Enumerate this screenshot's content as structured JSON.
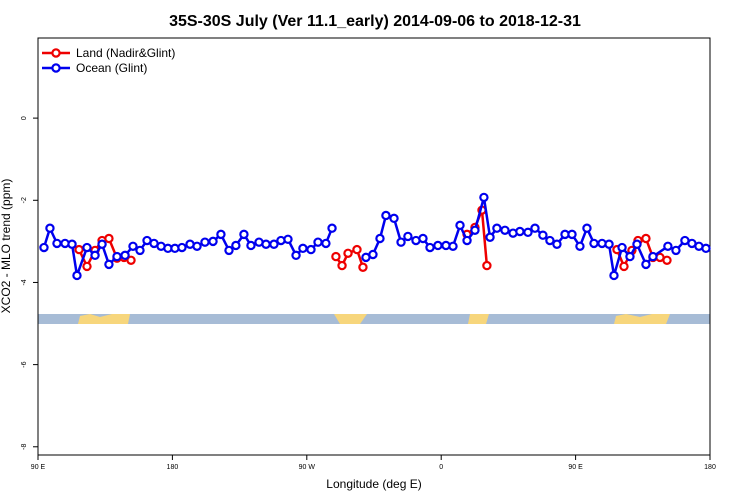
{
  "chart_data": {
    "type": "line",
    "title": "35S-30S July (Ver 11.1_early)   2014-09-06 to 2018-12-31",
    "x_label": "Longitude (deg E)",
    "y_label": "XCO2 - MLO trend (ppm)",
    "xlim": [
      90,
      540
    ],
    "ylim": [
      -8.2,
      1.95
    ],
    "xticks": [
      {
        "value": 90,
        "label": "90 E"
      },
      180,
      {
        "value": 270,
        "label": "90 W"
      },
      {
        "value": 360,
        "label": "0"
      },
      {
        "value": 450,
        "label": "90 E"
      },
      {
        "value": 540,
        "label": "180"
      }
    ],
    "yticks": [
      0,
      -2,
      -4,
      -6,
      -8
    ],
    "legend": "top-left",
    "series": [
      {
        "name": "Land (Nadir&Glint)",
        "color": "#ee0000",
        "x": [
          117.5,
          122.8,
          128.2,
          132.9,
          137.5,
          142.9,
          147.6,
          152.3,
          null,
          289.5,
          293.6,
          297.6,
          303.6,
          307.6,
          null,
          377.3,
          382.6,
          387.3,
          390.6,
          null,
          477.7,
          482.4,
          487.7,
          491.8,
          497.1,
          501.8,
          506.5,
          511.2
        ],
        "values": [
          -3.2,
          -3.61,
          -3.22,
          -2.98,
          -2.93,
          -3.41,
          -3.39,
          -3.46,
          null,
          -3.37,
          -3.59,
          -3.29,
          -3.2,
          -3.63,
          null,
          -2.83,
          -2.66,
          -2.24,
          -3.59,
          null,
          -3.2,
          -3.61,
          -3.22,
          -2.98,
          -2.93,
          -3.39,
          -3.39,
          -3.46
        ]
      },
      {
        "name": "Ocean (Glint)",
        "color": "#0000ee",
        "x": [
          94.0,
          98.0,
          102.7,
          108.1,
          112.8,
          116.1,
          122.8,
          128.2,
          132.9,
          137.5,
          142.9,
          148.3,
          153.6,
          158.3,
          163.0,
          167.7,
          172.4,
          177.0,
          181.7,
          186.4,
          191.8,
          196.5,
          201.8,
          207.2,
          212.5,
          217.9,
          222.5,
          227.9,
          232.6,
          238.0,
          242.7,
          248.0,
          252.7,
          257.4,
          262.8,
          267.4,
          272.8,
          277.5,
          282.8,
          286.9,
          null,
          309.6,
          314.3,
          319.0,
          323.0,
          328.4,
          333.1,
          337.7,
          343.1,
          347.8,
          352.5,
          357.8,
          363.2,
          367.9,
          372.6,
          377.3,
          382.6,
          388.6,
          392.7,
          397.3,
          402.7,
          408.1,
          412.7,
          418.1,
          422.8,
          428.1,
          432.8,
          437.5,
          442.9,
          447.6,
          452.9,
          457.6,
          462.3,
          467.7,
          472.4,
          475.7,
          481.1,
          486.4,
          491.1,
          497.1,
          501.8,
          511.8,
          517.2,
          523.2,
          527.9,
          532.6,
          537.3
        ],
        "values": [
          -3.15,
          -2.68,
          -3.05,
          -3.05,
          -3.07,
          -3.83,
          -3.15,
          -3.34,
          -3.07,
          -3.56,
          -3.37,
          -3.34,
          -3.12,
          -3.22,
          -2.98,
          -3.05,
          -3.12,
          -3.17,
          -3.17,
          -3.15,
          -3.07,
          -3.12,
          -3.02,
          -3.0,
          -2.83,
          -3.22,
          -3.1,
          -2.83,
          -3.1,
          -3.02,
          -3.07,
          -3.07,
          -2.98,
          -2.95,
          -3.34,
          -3.17,
          -3.2,
          -3.02,
          -3.05,
          -2.68,
          null,
          -3.39,
          -3.32,
          -2.93,
          -2.37,
          -2.44,
          -3.02,
          -2.88,
          -2.98,
          -2.93,
          -3.15,
          -3.1,
          -3.1,
          -3.12,
          -2.61,
          -2.98,
          -2.73,
          -1.93,
          -2.9,
          -2.68,
          -2.73,
          -2.8,
          -2.76,
          -2.78,
          -2.68,
          -2.85,
          -2.98,
          -3.07,
          -2.83,
          -2.83,
          -3.12,
          -2.68,
          -3.05,
          -3.05,
          -3.07,
          -3.83,
          -3.15,
          -3.37,
          -3.07,
          -3.56,
          -3.37,
          -3.12,
          -3.22,
          -2.98,
          -3.05,
          -3.12,
          -3.17
        ]
      }
    ]
  }
}
